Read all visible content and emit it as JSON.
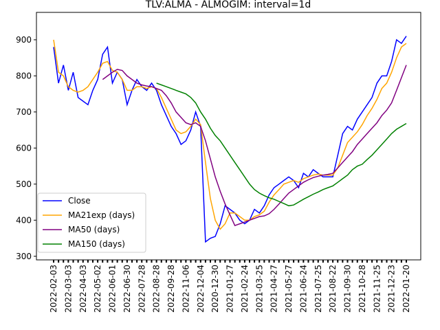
{
  "chart_data": {
    "type": "line",
    "title": "TLV:ALMA - ALMOGIM: interval=1d",
    "categories": [
      "2022-02-03",
      null,
      null,
      "2022-03-03",
      null,
      null,
      "2022-04-03",
      null,
      null,
      "2022-05-02",
      null,
      null,
      "2022-06-01",
      null,
      null,
      "2022-06-30",
      null,
      null,
      "2022-07-28",
      null,
      null,
      "2022-08-28",
      null,
      null,
      "2022-09-28",
      null,
      null,
      "2022-11-06",
      null,
      null,
      "2022-12-04",
      null,
      null,
      "2020-12-30",
      null,
      null,
      "2021-01-27",
      null,
      null,
      "2021-02-24",
      null,
      null,
      "2021-03-25",
      null,
      null,
      "2021-04-27",
      null,
      null,
      "2021-05-27",
      null,
      null,
      "2021-06-24",
      null,
      null,
      "2021-07-25",
      null,
      null,
      "2021-08-22",
      null,
      null,
      "2021-09-30",
      null,
      null,
      "2021-10-28",
      null,
      null,
      "2021-11-25",
      null,
      null,
      "2021-12-23",
      null,
      null,
      "2022-01-20"
    ],
    "series": [
      {
        "name": "Close",
        "color": "#0000ff",
        "values": [
          880,
          780,
          830,
          760,
          810,
          740,
          730,
          720,
          760,
          790,
          860,
          880,
          780,
          810,
          790,
          720,
          760,
          790,
          770,
          760,
          780,
          760,
          720,
          690,
          660,
          640,
          610,
          620,
          650,
          700,
          660,
          340,
          350,
          355,
          390,
          440,
          430,
          420,
          400,
          390,
          400,
          430,
          420,
          440,
          470,
          490,
          500,
          510,
          520,
          510,
          490,
          530,
          520,
          540,
          530,
          520,
          520,
          520,
          580,
          640,
          660,
          650,
          680,
          700,
          720,
          740,
          780,
          800,
          800,
          840,
          900,
          890,
          910
        ]
      },
      {
        "name": "MA21exp (days)",
        "color": "#ffa500",
        "values": [
          900,
          810,
          800,
          770,
          760,
          755,
          760,
          770,
          790,
          810,
          835,
          840,
          815,
          810,
          790,
          760,
          760,
          770,
          770,
          765,
          770,
          765,
          740,
          710,
          680,
          650,
          640,
          645,
          660,
          680,
          665,
          560,
          460,
          400,
          375,
          390,
          420,
          420,
          410,
          400,
          400,
          410,
          415,
          425,
          450,
          470,
          485,
          500,
          505,
          510,
          505,
          515,
          520,
          525,
          528,
          525,
          525,
          525,
          545,
          580,
          615,
          630,
          645,
          665,
          690,
          710,
          735,
          765,
          780,
          810,
          850,
          880,
          890
        ]
      },
      {
        "name": "MA50 (days)",
        "color": "#800080",
        "values": [
          null,
          null,
          null,
          null,
          null,
          null,
          null,
          null,
          null,
          null,
          790,
          800,
          810,
          818,
          815,
          800,
          790,
          780,
          775,
          772,
          770,
          765,
          760,
          745,
          725,
          700,
          685,
          670,
          665,
          670,
          660,
          620,
          570,
          520,
          480,
          445,
          415,
          385,
          390,
          395,
          400,
          405,
          410,
          412,
          418,
          430,
          445,
          460,
          475,
          485,
          495,
          505,
          512,
          518,
          522,
          525,
          527,
          530,
          545,
          560,
          575,
          590,
          610,
          625,
          640,
          655,
          670,
          690,
          705,
          725,
          760,
          795,
          830
        ]
      },
      {
        "name": "MA150 (days)",
        "color": "#008000",
        "values": [
          null,
          null,
          null,
          null,
          null,
          null,
          null,
          null,
          null,
          null,
          null,
          null,
          null,
          null,
          null,
          null,
          null,
          null,
          null,
          null,
          null,
          780,
          775,
          770,
          765,
          760,
          755,
          750,
          740,
          725,
          700,
          680,
          655,
          635,
          620,
          600,
          580,
          560,
          540,
          520,
          500,
          485,
          475,
          468,
          462,
          458,
          452,
          446,
          440,
          442,
          450,
          458,
          465,
          472,
          478,
          485,
          490,
          495,
          505,
          515,
          525,
          540,
          550,
          555,
          568,
          580,
          595,
          610,
          625,
          640,
          652,
          660,
          668
        ]
      }
    ],
    "ylim": [
      290,
      976
    ],
    "yticks": [
      300,
      400,
      500,
      600,
      700,
      800,
      900
    ],
    "legend": "lower left"
  }
}
